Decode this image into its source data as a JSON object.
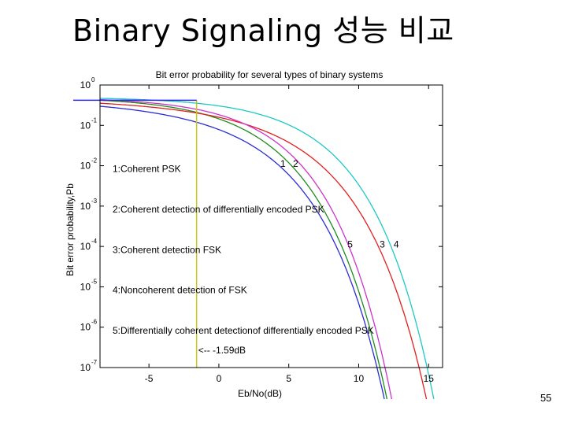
{
  "slide": {
    "title": "Binary Signaling 성능 비교",
    "page_number": "55"
  },
  "chart_data": {
    "type": "line",
    "title": "Bit error probability for several types of binary systems",
    "xlabel": "Eb/No(dB)",
    "ylabel": "Bit error probability,Pb",
    "xlim": [
      -8.5,
      16
    ],
    "ylim_exponent": [
      -7,
      0
    ],
    "log_y": true,
    "grid": false,
    "x_ticks": [
      -5,
      0,
      5,
      10,
      15
    ],
    "y_ticks": [
      {
        "exp": 0,
        "base": "10",
        "sup": "0"
      },
      {
        "exp": -1,
        "base": "10",
        "sup": "-1"
      },
      {
        "exp": -2,
        "base": "10",
        "sup": "-2"
      },
      {
        "exp": -3,
        "base": "10",
        "sup": "-3"
      },
      {
        "exp": -4,
        "base": "10",
        "sup": "-4"
      },
      {
        "exp": -5,
        "base": "10",
        "sup": "-5"
      },
      {
        "exp": -6,
        "base": "10",
        "sup": "-6"
      },
      {
        "exp": -7,
        "base": "10",
        "sup": "-7"
      }
    ],
    "series": [
      {
        "name": "1:Coherent PSK",
        "label": "1",
        "color": "#2b2bd8",
        "formula": "psk",
        "label_pos": {
          "x": 4.4,
          "y": 0.0112
        }
      },
      {
        "name": "2:Coherent detection of differentially encoded PSK",
        "label": "2",
        "color": "#1f8a1f",
        "formula": "dpsk_coh",
        "label_pos": {
          "x": 5.3,
          "y": 0.0112
        }
      },
      {
        "name": "3:Coherent detection FSK",
        "label": "3",
        "color": "#e02020",
        "formula": "fsk_coh",
        "label_pos": {
          "x": 11.5,
          "y": 0.000112
        }
      },
      {
        "name": "4:Noncoherent detection of FSK",
        "label": "4",
        "color": "#1ec8c8",
        "formula": "fsk_noncoh",
        "label_pos": {
          "x": 12.5,
          "y": 0.000112
        }
      },
      {
        "name": "5:Differentially coherent detectionof differentially encoded PSK",
        "label": "5",
        "color": "#cc33cc",
        "formula": "dpsk_diff",
        "label_pos": {
          "x": 9.2,
          "y": 0.000112
        }
      }
    ],
    "shannon_limit": {
      "x": -1.59,
      "label": "<--  -1.59dB",
      "color": "#c8c820",
      "y_top": 0.42,
      "bar_color": "#2b2bd8"
    },
    "annotations": [
      {
        "text": "1:Coherent PSK",
        "x": -7.6,
        "y": 0.0083
      },
      {
        "text": "2:Coherent detection of differentially encoded PSK",
        "x": -7.6,
        "y": 0.00083
      },
      {
        "text": "3:Coherent detection FSK",
        "x": -7.6,
        "y": 8.3e-05
      },
      {
        "text": "4:Noncoherent detection of FSK",
        "x": -7.6,
        "y": 8.3e-06
      },
      {
        "text": "5:Differentially coherent detectionof differentially encoded PSK",
        "x": -7.6,
        "y": 8.3e-07
      }
    ]
  }
}
